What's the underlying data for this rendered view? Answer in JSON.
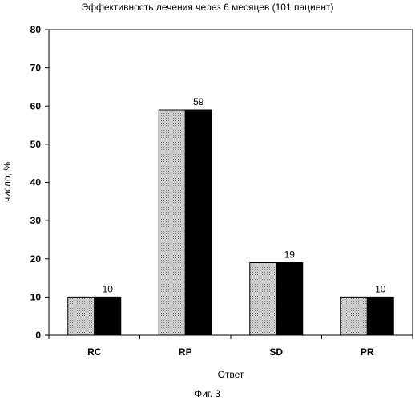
{
  "chart_data": {
    "type": "bar",
    "title": "Эффективность лечения через 6 месяцев (101 пациент)",
    "xlabel": "Ответ",
    "ylabel": "число, %",
    "categories": [
      "RC",
      "RP",
      "SD",
      "PR"
    ],
    "series": [
      {
        "values": [
          10,
          59,
          19,
          10
        ],
        "color": "#c8c8c8",
        "pattern": "dotted"
      },
      {
        "values": [
          10,
          59,
          19,
          10
        ],
        "color": "#000000"
      }
    ],
    "data_labels": [
      "10",
      "59",
      "19",
      "10"
    ],
    "ylim": [
      0,
      80
    ],
    "yticks": [
      0,
      10,
      20,
      30,
      40,
      50,
      60,
      70,
      80
    ],
    "grid": false,
    "legend": "none"
  },
  "caption": "Фиг. 3"
}
